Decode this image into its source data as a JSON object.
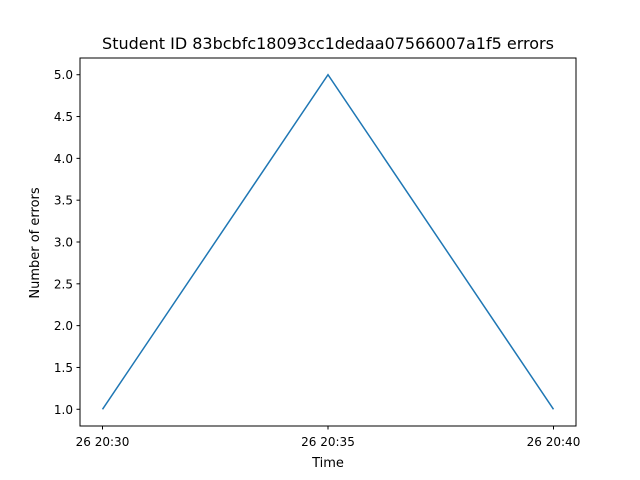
{
  "chart_data": {
    "type": "line",
    "title": "Student ID 83bcbfc18093cc1dedaa07566007a1f5 errors",
    "xlabel": "Time",
    "ylabel": "Number of errors",
    "x": [
      "26 20:30",
      "26 20:35",
      "26 20:40"
    ],
    "series": [
      {
        "values": [
          1.0,
          5.0,
          1.0
        ],
        "color": "#1f77b4"
      }
    ],
    "xticks": [
      "26 20:30",
      "26 20:35",
      "26 20:40"
    ],
    "yticks": [
      "1.0",
      "1.5",
      "2.0",
      "2.5",
      "3.0",
      "3.5",
      "4.0",
      "4.5",
      "5.0"
    ],
    "ylim": [
      0.8,
      5.2
    ],
    "grid": false
  }
}
